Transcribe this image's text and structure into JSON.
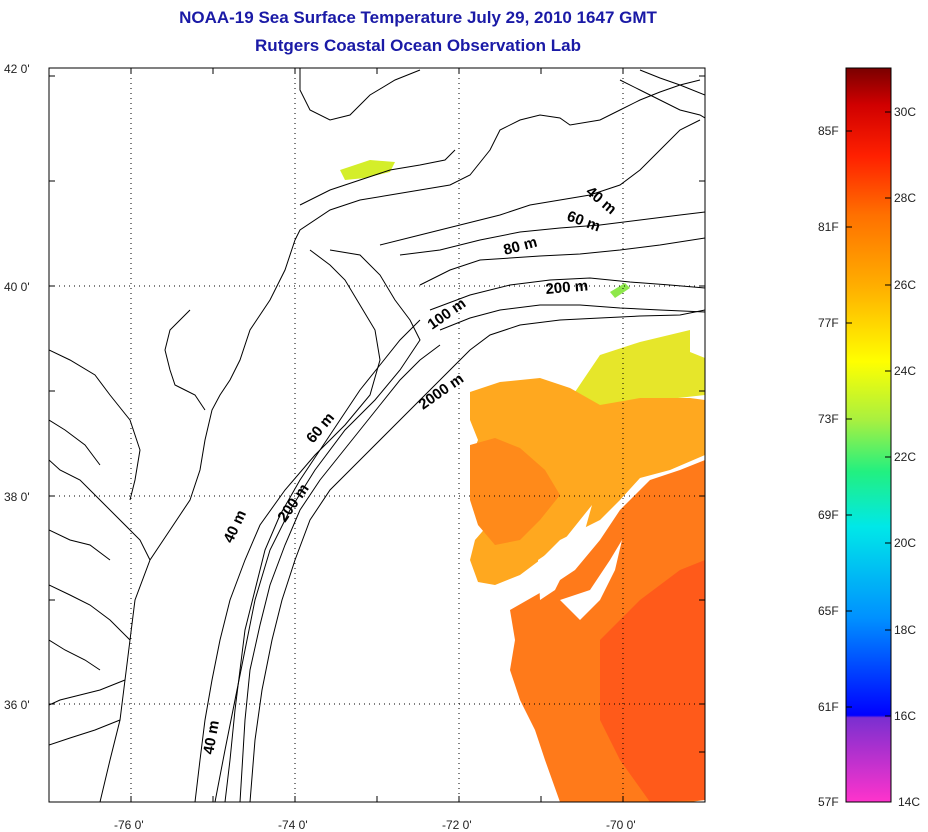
{
  "title": {
    "line1": "NOAA-19 Sea Surface Temperature July 29, 2010 1647 GMT",
    "line2": "Rutgers Coastal Ocean Observation Lab"
  },
  "map": {
    "lat_ticks": [
      "42 0'",
      "40 0'",
      "38 0'",
      "36 0'"
    ],
    "lon_ticks": [
      "-76 0'",
      "-74 0'",
      "-72 0'",
      "-70 0'"
    ],
    "isobaths": [
      "40 m",
      "60 m",
      "80 m",
      "200 m",
      "100 m",
      "2000 m",
      "60 m",
      "200 m",
      "40 m",
      "40 m"
    ]
  },
  "colorbar": {
    "fahrenheit": [
      "85F",
      "81F",
      "77F",
      "73F",
      "69F",
      "65F",
      "61F",
      "57F"
    ],
    "celsius": [
      "30C",
      "28C",
      "26C",
      "24C",
      "22C",
      "20C",
      "18C",
      "16C",
      "14C"
    ],
    "colors": [
      "#ff33cc",
      "#7a2fd0",
      "#0000ff",
      "#0090ff",
      "#00e0e0",
      "#22f080",
      "#a8f040",
      "#ffff00",
      "#ffb000",
      "#ff7000",
      "#ff2000",
      "#e00000",
      "#800000"
    ]
  },
  "legend_colors": {
    "sst_warm": "#ff7a1a",
    "sst_hot": "#ff4e1a",
    "sst_mid": "#ffa81f",
    "sst_cool": "#e6e62a"
  }
}
